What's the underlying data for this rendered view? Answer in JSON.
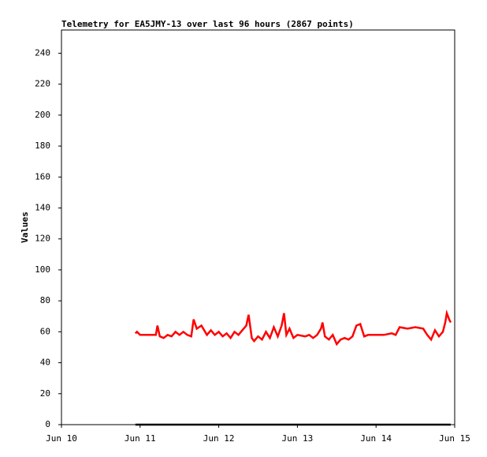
{
  "chart_data": {
    "type": "line",
    "title": "Telemetry for EA5JMY-13 over last 96 hours (2867 points)",
    "y_label": "Values",
    "xlim": [
      10,
      15
    ],
    "xticks": [
      {
        "value": 10,
        "label": "Jun 10"
      },
      {
        "value": 11,
        "label": "Jun 11"
      },
      {
        "value": 12,
        "label": "Jun 12"
      },
      {
        "value": 13,
        "label": "Jun 13"
      },
      {
        "value": 14,
        "label": "Jun 14"
      },
      {
        "value": 15,
        "label": "Jun 15"
      }
    ],
    "ylim": [
      0,
      255
    ],
    "yticks": [
      0,
      20,
      40,
      60,
      80,
      100,
      120,
      140,
      160,
      180,
      200,
      220,
      240
    ],
    "series": [
      {
        "color": "#ff0000",
        "x": [
          10.94,
          10.96,
          11.0,
          11.1,
          11.2,
          11.22,
          11.25,
          11.3,
          11.35,
          11.4,
          11.45,
          11.5,
          11.55,
          11.6,
          11.65,
          11.68,
          11.72,
          11.78,
          11.85,
          11.9,
          11.95,
          12.0,
          12.05,
          12.1,
          12.15,
          12.2,
          12.25,
          12.3,
          12.35,
          12.38,
          12.42,
          12.45,
          12.5,
          12.55,
          12.6,
          12.65,
          12.7,
          12.75,
          12.8,
          12.83,
          12.86,
          12.9,
          12.95,
          13.0,
          13.1,
          13.15,
          13.2,
          13.25,
          13.3,
          13.32,
          13.35,
          13.4,
          13.45,
          13.5,
          13.55,
          13.6,
          13.65,
          13.7,
          13.75,
          13.8,
          13.85,
          13.9,
          14.0,
          14.1,
          14.2,
          14.25,
          14.3,
          14.4,
          14.5,
          14.6,
          14.65,
          14.7,
          14.75,
          14.8,
          14.85,
          14.88,
          14.9,
          14.93,
          14.95
        ],
        "values": [
          59,
          60,
          58,
          58,
          58,
          64,
          57,
          56,
          58,
          57,
          60,
          58,
          60,
          58,
          57,
          68,
          62,
          64,
          58,
          61,
          58,
          60,
          57,
          59,
          56,
          60,
          58,
          61,
          64,
          71,
          56,
          54,
          57,
          55,
          60,
          56,
          63,
          57,
          64,
          72,
          58,
          62,
          56,
          58,
          57,
          58,
          56,
          58,
          62,
          66,
          57,
          55,
          58,
          52,
          55,
          56,
          55,
          57,
          64,
          65,
          57,
          58,
          58,
          58,
          59,
          58,
          63,
          62,
          63,
          62,
          58,
          55,
          61,
          57,
          60,
          66,
          72,
          68,
          66
        ]
      },
      {
        "color": "#000000",
        "x": [
          10.94,
          14.95
        ],
        "values": [
          0,
          0
        ]
      }
    ]
  }
}
